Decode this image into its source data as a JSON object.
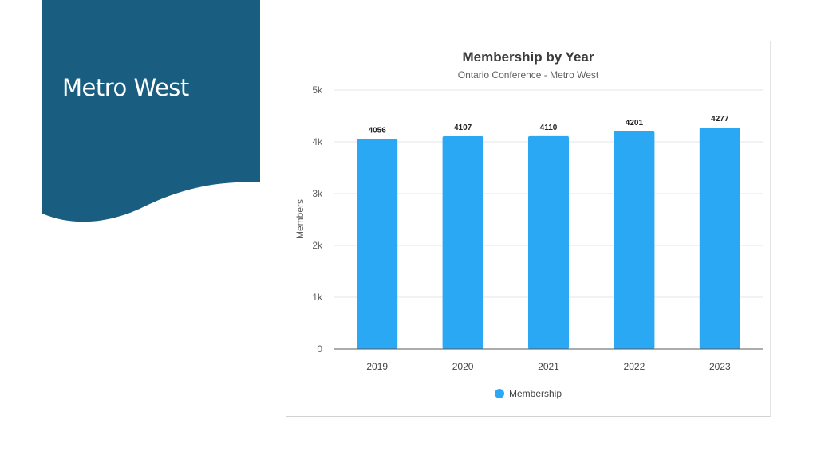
{
  "slide": {
    "title": "Metro West",
    "banner_color": "#195e80"
  },
  "chart_data": {
    "type": "bar",
    "title": "Membership by Year",
    "subtitle": "Ontario Conference - Metro West",
    "xlabel": "",
    "ylabel": "Members",
    "categories": [
      "2019",
      "2020",
      "2021",
      "2022",
      "2023"
    ],
    "series": [
      {
        "name": "Membership",
        "values": [
          4056,
          4107,
          4110,
          4201,
          4277
        ],
        "color": "#2ba8f4"
      }
    ],
    "ylim": [
      0,
      5000
    ],
    "yticks": [
      0,
      1000,
      2000,
      3000,
      4000,
      5000
    ],
    "ytick_labels": [
      "0",
      "1k",
      "2k",
      "3k",
      "4k",
      "5k"
    ],
    "data_labels": true,
    "grid": true,
    "legend": "bottom"
  }
}
